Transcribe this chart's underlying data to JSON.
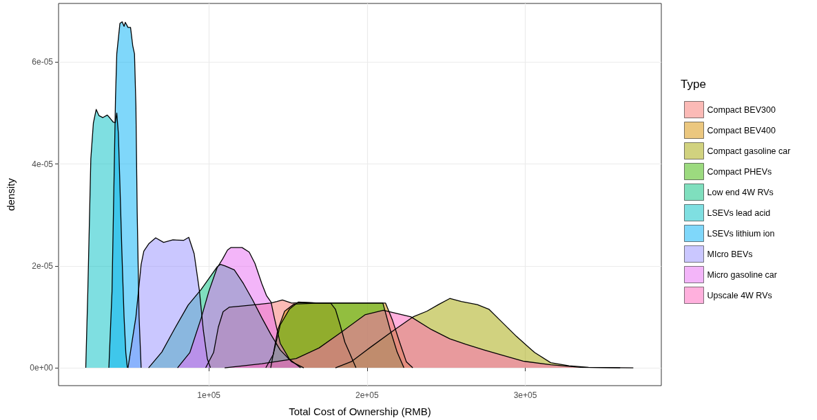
{
  "chart_data": {
    "type": "area",
    "xlabel": "Total Cost of Ownership (RMB)",
    "ylabel": "density",
    "legend_title": "Type",
    "legend": "right",
    "grid": true,
    "xlim": [
      5000,
      386000
    ],
    "xticks": [
      {
        "value": 100000,
        "label": "1e+05"
      },
      {
        "value": 200000,
        "label": "2e+05"
      },
      {
        "value": 300000,
        "label": "3e+05"
      }
    ],
    "ylim": [
      -3.5e-06,
      7.15e-05
    ],
    "yticks": [
      {
        "value": 0,
        "label": "0e+00"
      },
      {
        "value": 2e-05,
        "label": "2e-05"
      },
      {
        "value": 4e-05,
        "label": "4e-05"
      },
      {
        "value": 6e-05,
        "label": "6e-05"
      }
    ],
    "series": [
      {
        "name": "Compact BEV300",
        "color": "#f8766d",
        "x": [
          98000,
          103000,
          106000,
          109000,
          113000,
          120000,
          130000,
          139000,
          143000,
          146500,
          152300,
          160000,
          170000,
          177000,
          180000,
          183000,
          186000,
          188700,
          193000
        ],
        "values": [
          0,
          3e-06,
          8e-06,
          1.1e-05,
          1.19e-05,
          1.21e-05,
          1.24e-05,
          1.27e-05,
          1.3e-05,
          1.33e-05,
          1.27e-05,
          1.28e-05,
          1.27e-05,
          1.27e-05,
          1.15e-05,
          8.4e-06,
          5e-06,
          3.1e-06,
          0
        ]
      },
      {
        "name": "Compact BEV400",
        "color": "#d89000",
        "x": [
          139100,
          143600,
          147900,
          153800,
          170000,
          190000,
          211700,
          216100,
          220400,
          224800,
          228900
        ],
        "values": [
          0,
          7.5e-06,
          1.11e-05,
          1.25e-05,
          1.27e-05,
          1.27e-05,
          1.27e-05,
          9.3e-06,
          5.2e-06,
          1.2e-06,
          0
        ]
      },
      {
        "name": "Compact gasoline car",
        "color": "#a3a500",
        "x": [
          180000,
          190000,
          201600,
          217500,
          229100,
          237800,
          245100,
          252300,
          259600,
          269700,
          277000,
          284200,
          294300,
          305900,
          316100,
          327700,
          340000,
          360000
        ],
        "values": [
          0,
          1.2e-06,
          3.9e-06,
          7.5e-06,
          1e-05,
          1.11e-05,
          1.24e-05,
          1.36e-05,
          1.3e-05,
          1.24e-05,
          1.15e-05,
          9.3e-06,
          6.2e-06,
          3e-06,
          1e-06,
          4e-07,
          1e-07,
          0
        ]
      },
      {
        "name": "Compact PHEVs",
        "color": "#39b600",
        "x": [
          136000,
          140700,
          145100,
          150900,
          156500,
          170000,
          190000,
          210000,
          214600,
          219000,
          223300
        ],
        "values": [
          0,
          2.6e-06,
          8.4e-06,
          1.15e-05,
          1.29e-05,
          1.27e-05,
          1.27e-05,
          1.27e-05,
          7.5e-06,
          3.1e-06,
          0
        ]
      },
      {
        "name": "Low end 4W RVs",
        "color": "#00bf7d",
        "x": [
          61900,
          70300,
          78600,
          86900,
          95200,
          105200,
          107400,
          110300,
          116100,
          121900,
          127700,
          133500,
          139100,
          145100,
          152200,
          160000
        ],
        "values": [
          0,
          3.1e-06,
          7.8e-06,
          1.23e-05,
          1.54e-05,
          1.98e-05,
          2.03e-05,
          2e-05,
          1.92e-05,
          1.65e-05,
          1.33e-05,
          9.8e-06,
          6.6e-06,
          3.5e-06,
          1.2e-06,
          0
        ]
      },
      {
        "name": "LSEVs lead acid",
        "color": "#00bfc4",
        "x": [
          22200,
          23500,
          25400,
          27000,
          28800,
          30500,
          33000,
          35800,
          37500,
          39600,
          40900,
          41800,
          42800,
          43800,
          45000,
          46400,
          47500,
          48500
        ],
        "values": [
          0,
          1.5e-05,
          4.1e-05,
          4.8e-05,
          5.07e-05,
          4.95e-05,
          4.91e-05,
          4.96e-05,
          4.9e-05,
          4.82e-05,
          4.81e-05,
          5e-05,
          4.6e-05,
          3.58e-05,
          2.3e-05,
          1e-05,
          3e-06,
          0
        ]
      },
      {
        "name": "LSEVs lithium ion",
        "color": "#00b0f6",
        "x": [
          36800,
          38800,
          39700,
          41000,
          41800,
          43800,
          45200,
          46400,
          47200,
          48900,
          50500,
          51900,
          53000,
          53900,
          54700,
          55900,
          57200
        ],
        "values": [
          0,
          1.5e-05,
          3.06e-05,
          5.3e-05,
          6.16e-05,
          6.76e-05,
          6.79e-05,
          6.7e-05,
          6.78e-05,
          6.68e-05,
          6.68e-05,
          6.32e-05,
          6.16e-05,
          5.13e-05,
          3.06e-05,
          1e-05,
          0
        ]
      },
      {
        "name": "MIcro BEVs",
        "color": "#9590ff",
        "x": [
          48900,
          53900,
          57200,
          58900,
          62200,
          66400,
          71400,
          77300,
          84000,
          87300,
          90700,
          94000,
          96500,
          99000,
          101000
        ],
        "values": [
          0,
          1e-05,
          2.03e-05,
          2.29e-05,
          2.44e-05,
          2.55e-05,
          2.46e-05,
          2.51e-05,
          2.5e-05,
          2.56e-05,
          2.24e-05,
          1.52e-05,
          7.4e-06,
          1.8e-06,
          0
        ]
      },
      {
        "name": "Micro gasoline car",
        "color": "#e76bf3",
        "x": [
          80200,
          88000,
          95200,
          100000,
          105200,
          108800,
          111800,
          114000,
          121000,
          125500,
          129100,
          133500,
          136400,
          139300,
          141400,
          145100,
          150900,
          158000
        ],
        "values": [
          0,
          3e-06,
          9.8e-06,
          1.5e-05,
          1.96e-05,
          2.14e-05,
          2.31e-05,
          2.36e-05,
          2.36e-05,
          2.27e-05,
          2.05e-05,
          1.65e-05,
          1.42e-05,
          1.29e-05,
          9.8e-06,
          4.8e-06,
          1.7e-06,
          0
        ]
      },
      {
        "name": "Upscale 4W RVs",
        "color": "#ff62bc",
        "x": [
          110000,
          133500,
          155200,
          169700,
          184200,
          198700,
          210300,
          227700,
          240700,
          252300,
          262500,
          274000,
          284200,
          298700,
          316100,
          334900,
          368300
        ],
        "values": [
          0,
          8e-07,
          1.8e-06,
          3.9e-06,
          7.1e-06,
          1.04e-05,
          1.13e-05,
          1e-05,
          7.5e-06,
          5.7e-06,
          4.6e-06,
          3.5e-06,
          2.6e-06,
          1.3e-06,
          6e-07,
          1e-07,
          0
        ]
      }
    ]
  }
}
